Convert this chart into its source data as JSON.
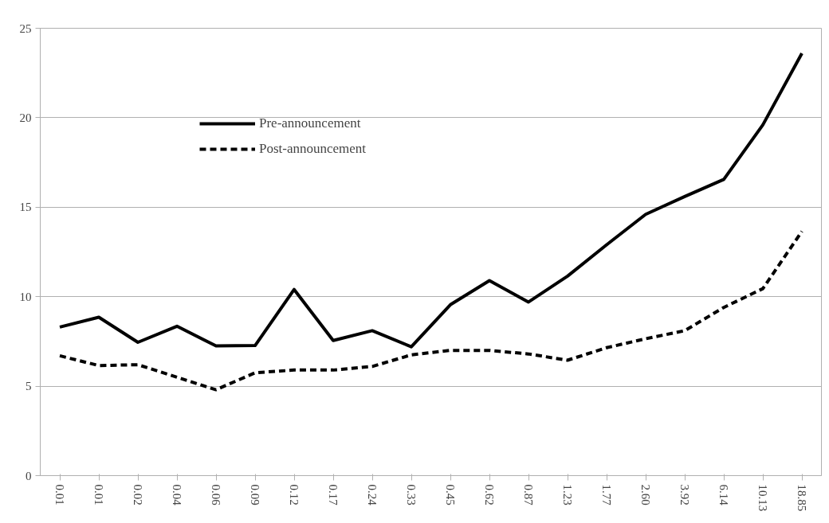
{
  "chart_data": {
    "type": "line",
    "categories": [
      "0.01",
      "0.01",
      "0.02",
      "0.04",
      "0.06",
      "0.09",
      "0.12",
      "0.17",
      "0.24",
      "0.33",
      "0.45",
      "0.62",
      "0.87",
      "1.23",
      "1.77",
      "2.60",
      "3.92",
      "6.14",
      "10.13",
      "18.85"
    ],
    "series": [
      {
        "name": "Pre-announcement",
        "color": "#000000",
        "line_style": "solid",
        "values": [
          8.3,
          8.85,
          7.45,
          8.35,
          7.25,
          7.27,
          10.4,
          7.55,
          8.1,
          7.2,
          9.55,
          10.9,
          9.7,
          11.15,
          12.9,
          14.6,
          15.6,
          16.55,
          19.6,
          23.6
        ]
      },
      {
        "name": "Post-announcement",
        "color": "#000000",
        "line_style": "dashed",
        "values": [
          6.7,
          6.15,
          6.2,
          5.5,
          4.8,
          5.75,
          5.9,
          5.9,
          6.1,
          6.75,
          7.0,
          7.0,
          6.8,
          6.45,
          7.15,
          7.65,
          8.1,
          9.4,
          10.45,
          13.65
        ]
      }
    ],
    "ylim": [
      0,
      25
    ],
    "yticks": [
      0,
      5,
      10,
      15,
      20,
      25
    ],
    "grid": "y",
    "legend": "top left",
    "marker": "none"
  }
}
